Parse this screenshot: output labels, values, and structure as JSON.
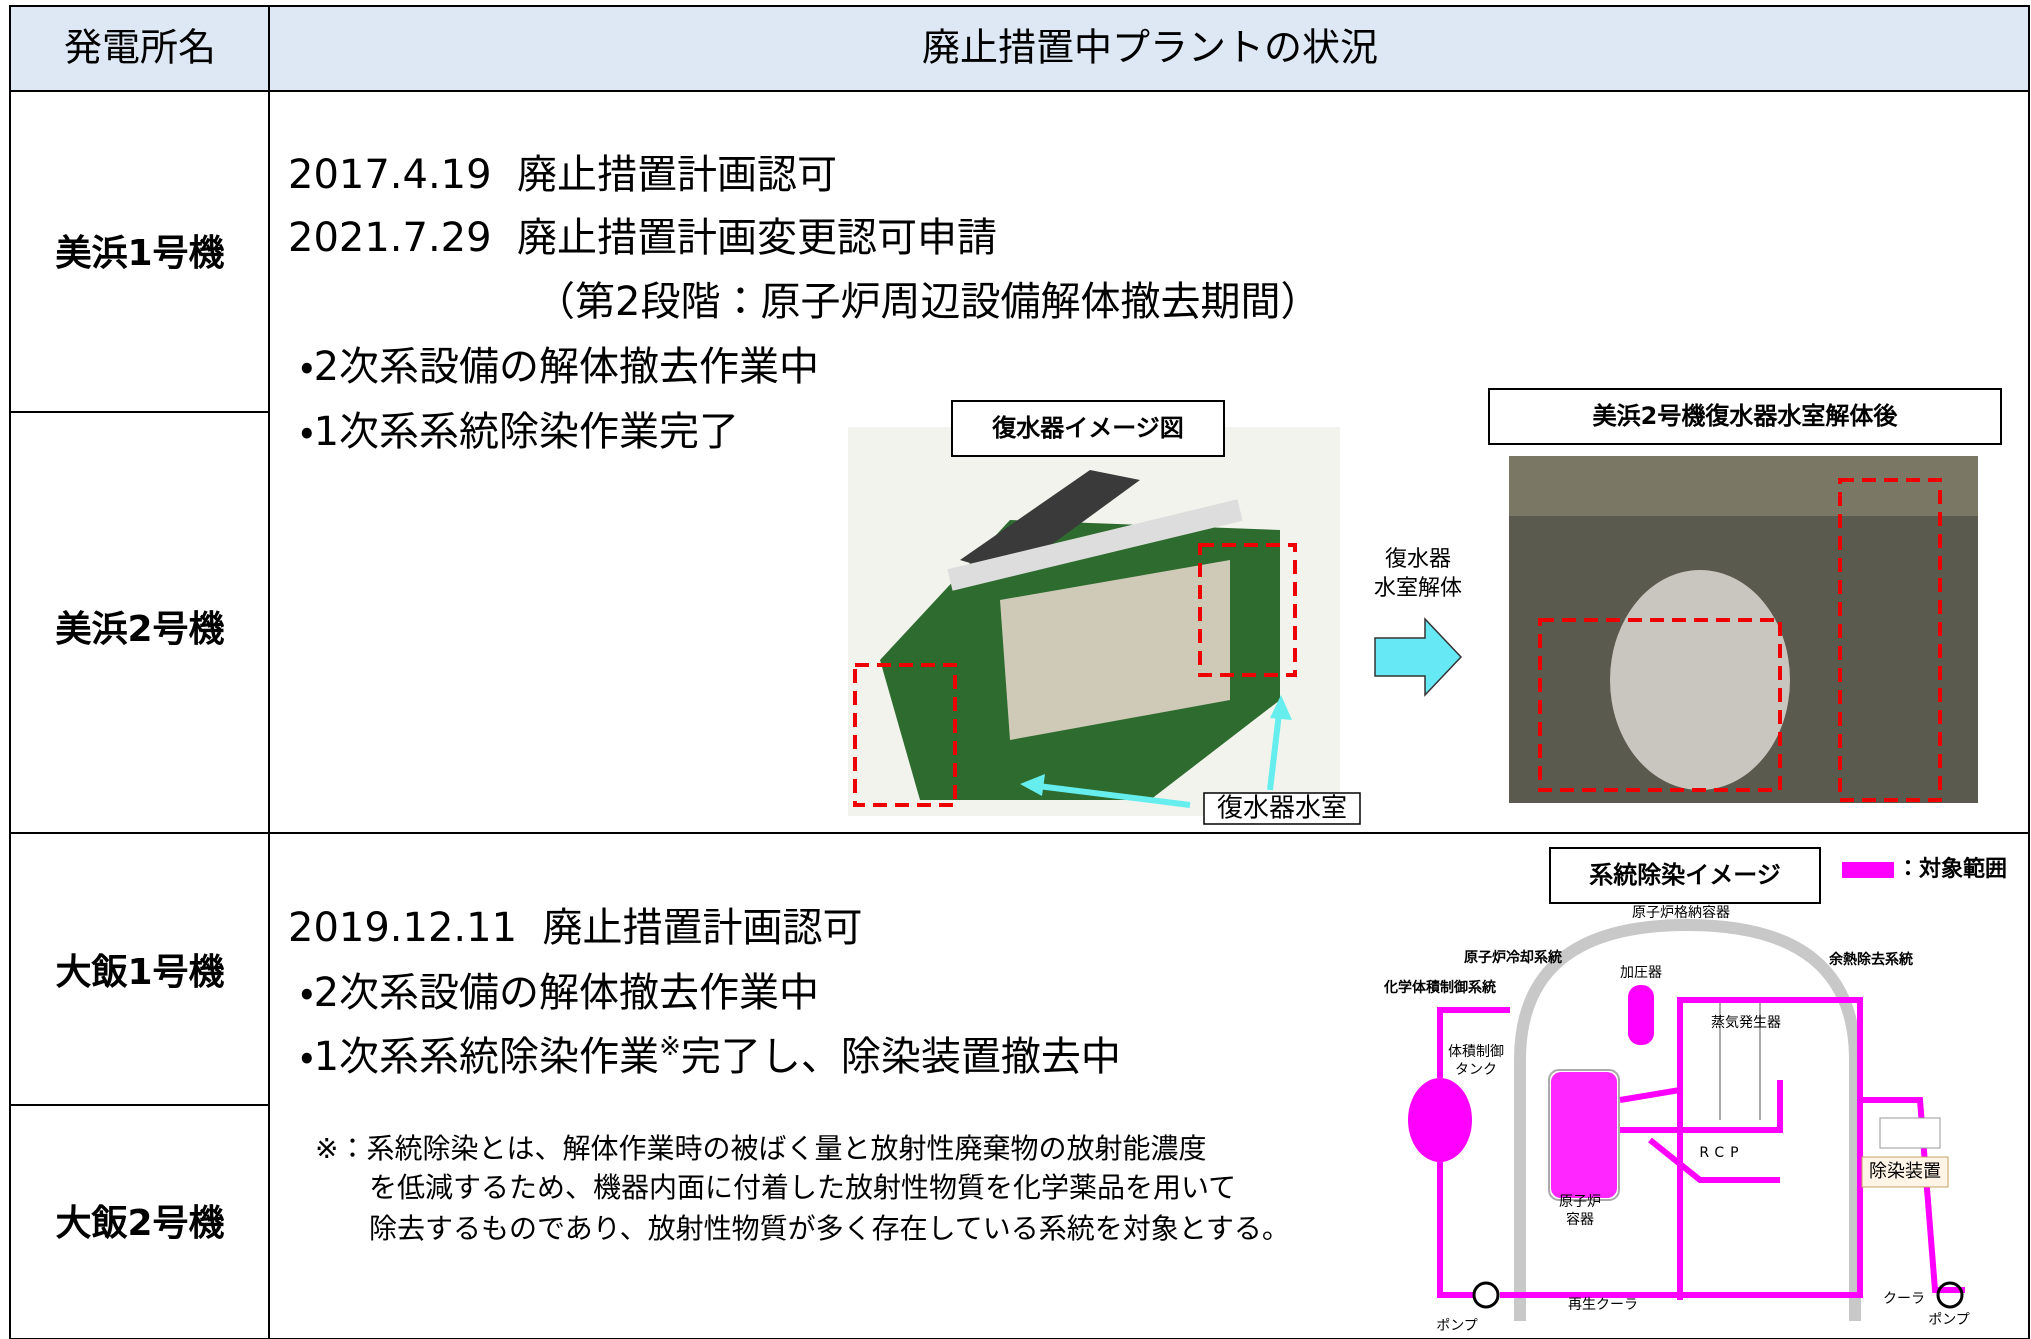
{
  "table": {
    "header": [
      "発電所名",
      "廃止措置中プラントの状況"
    ],
    "plants": [
      "美浜1号機",
      "美浜2号機",
      "大飯1号機",
      "大飯2号機"
    ]
  },
  "mihama": {
    "lines": [
      "2017.4.19  廃止措置計画認可",
      "2021.7.29  廃止措置計画変更認可申請",
      "（第2段階：原子炉周辺設備解体撤去期間）",
      "・2次系設備の解体撤去作業中",
      "・1次系系統除染作業完了"
    ],
    "condenser_figure": {
      "title": "復水器イメージ図",
      "callout": "復水器水室"
    },
    "arrow_label": [
      "復水器",
      "水室解体"
    ],
    "photo_title": "美浜2号機復水器水室解体後"
  },
  "ohi": {
    "lines": [
      "2019.12.11  廃止措置計画認可",
      "・2次系設備の解体撤去作業中"
    ],
    "line3": [
      "・1次系系統除染作業",
      "※",
      "完了し、除染装置撤去中"
    ],
    "footnote": [
      "※：系統除染とは、解体作業時の被ばく量と放射性廃棄物の放射能濃度",
      "を低減するため、機器内面に付着した放射性物質を化学薬品を用いて",
      "除去するものであり、放射性物質が多く存在している系統を対象とする。"
    ],
    "diagram": {
      "title": "系統除染イメージ",
      "legend": "：対象範囲",
      "labels": [
        "原子炉格納容器",
        "原子炉冷却系統",
        "余熱除去系統",
        "化学体積制御系統",
        "加圧器",
        "蒸気発生器",
        "体積制御",
        "タンク",
        "RCP",
        "除染装置",
        "原子炉",
        "容器",
        "再生クーラ",
        "ポンプ",
        "クーラ",
        "ポンプ"
      ]
    }
  }
}
